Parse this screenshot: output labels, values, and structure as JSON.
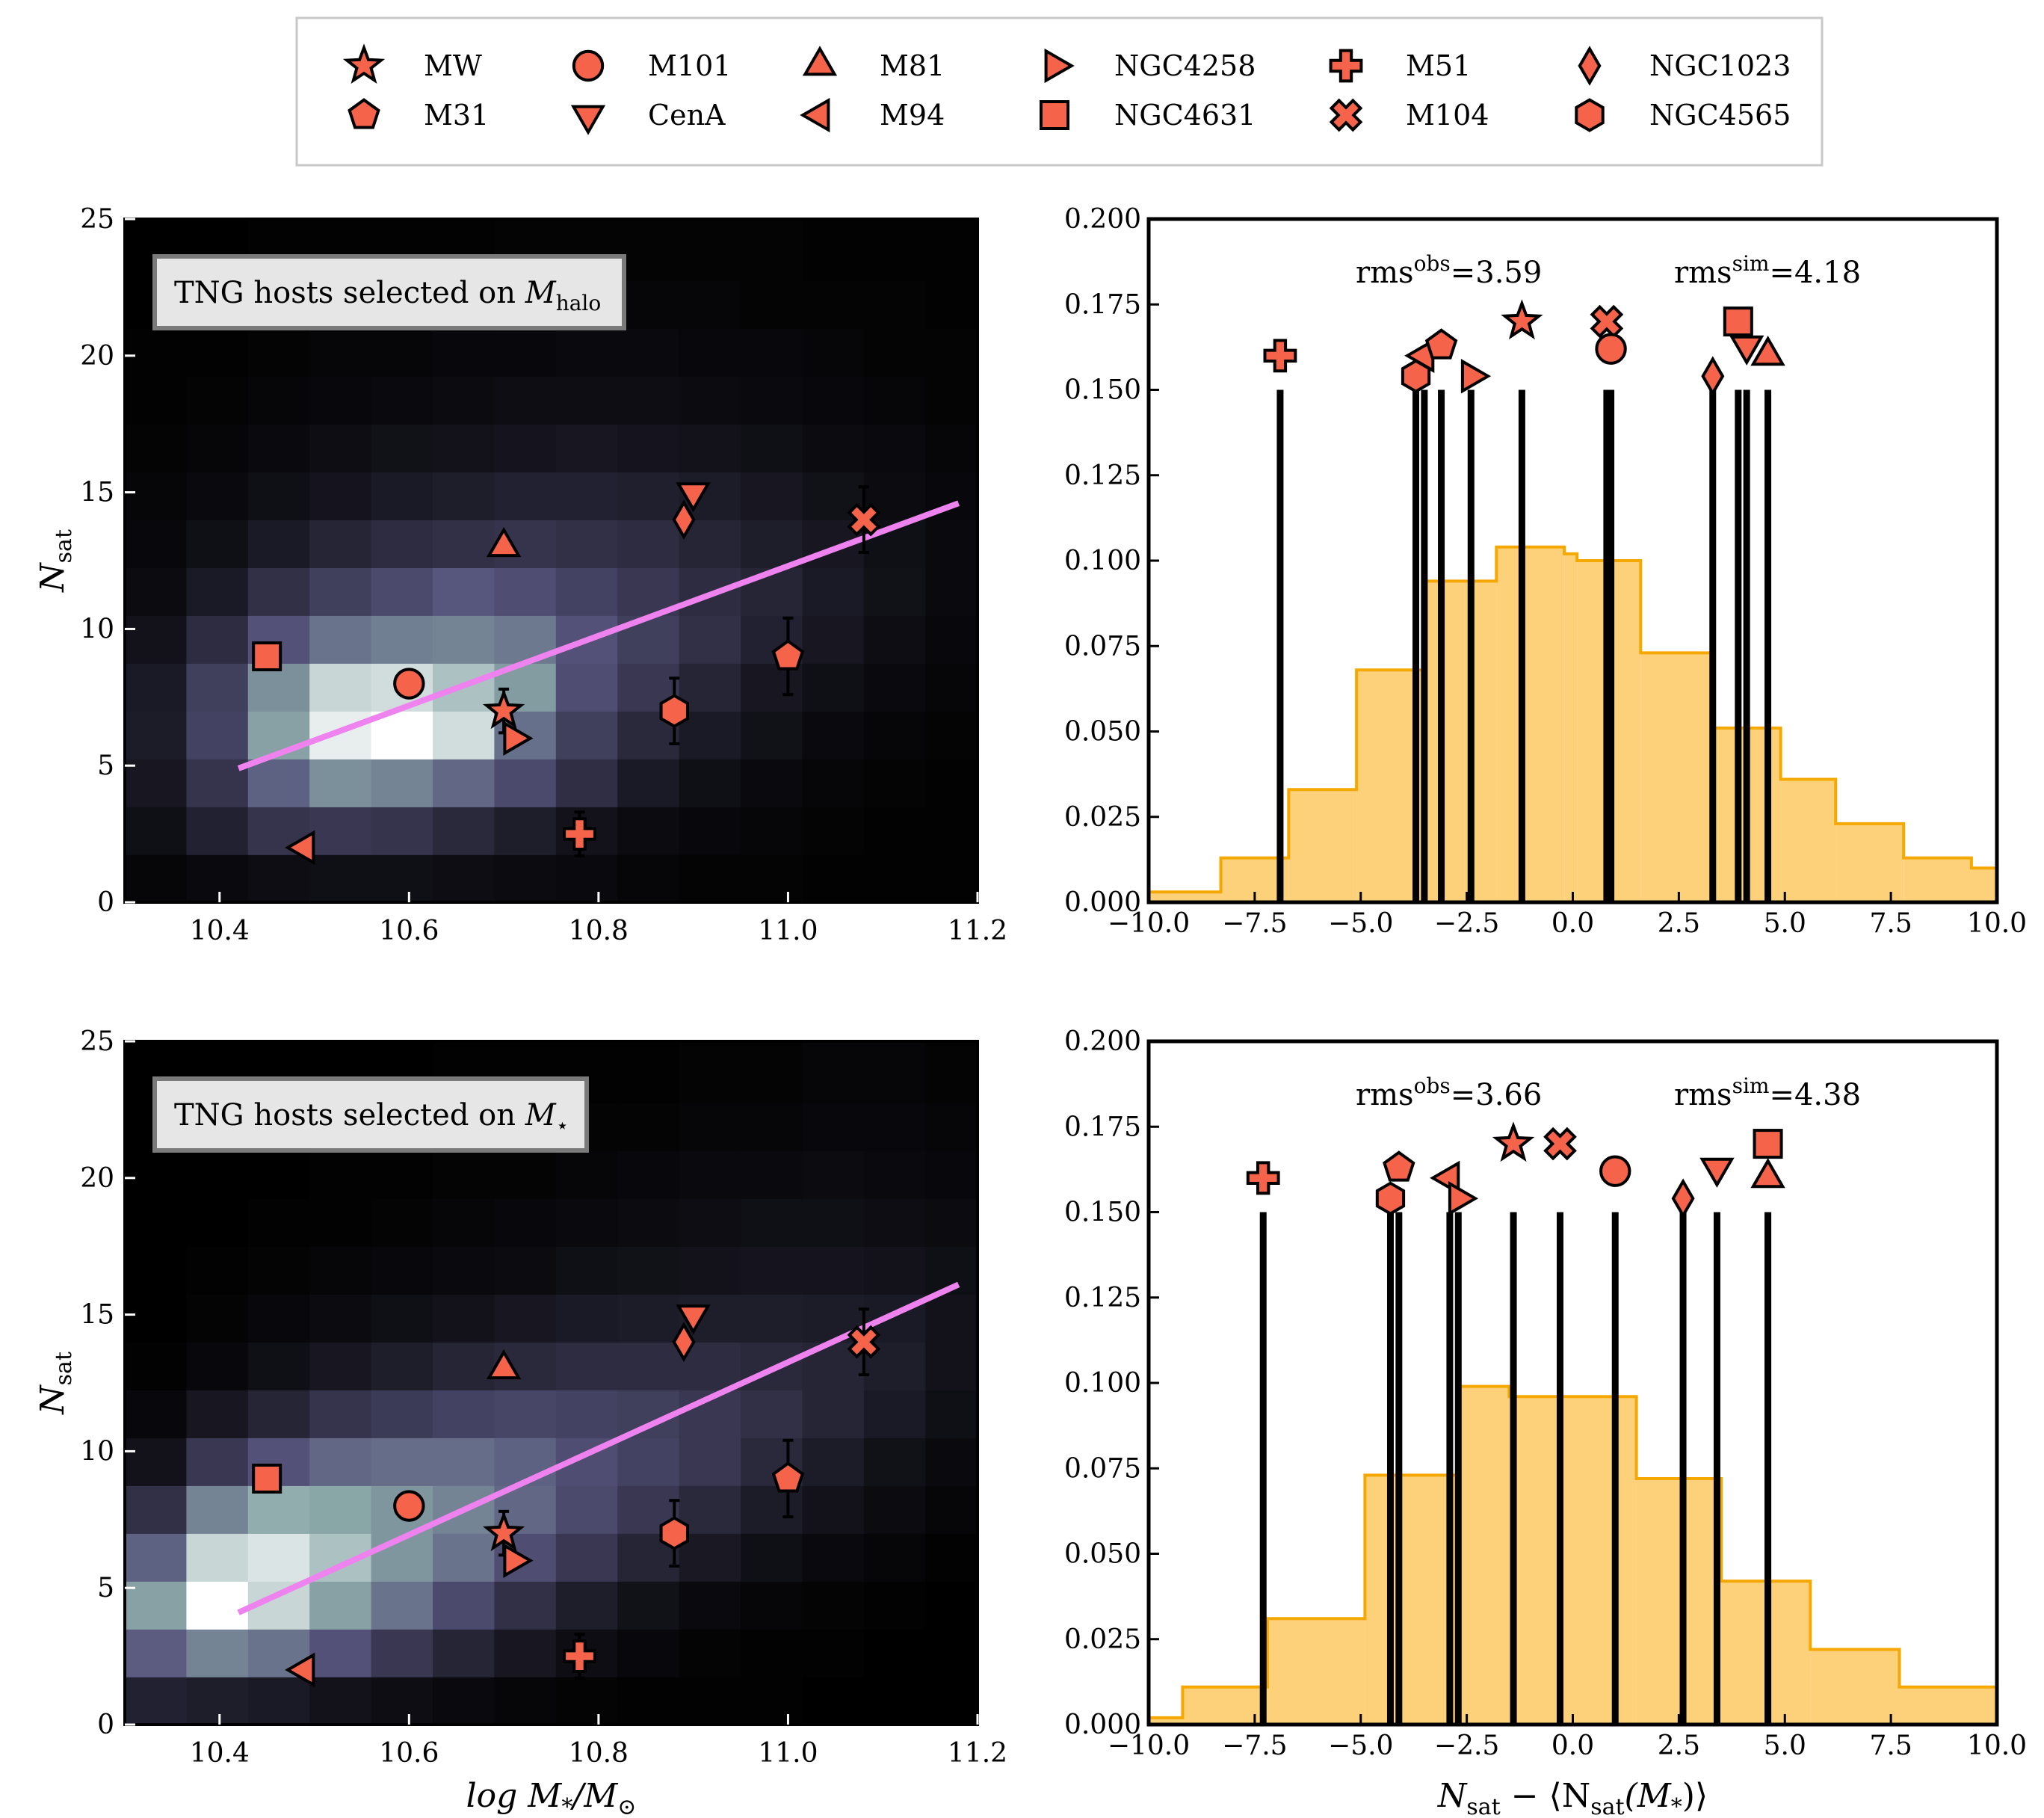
{
  "colors": {
    "marker_fill": "#f4634a",
    "marker_edge": "#000000",
    "fit_line": "#ee82ee",
    "hist_fill": "#fdd07a",
    "hist_edge": "#f5a800",
    "heat_low": "#000000",
    "heat_mid": "#55537a",
    "heat_high": "#ffffff"
  },
  "legend": {
    "entries": [
      {
        "name": "MW",
        "marker": "star-icon"
      },
      {
        "name": "M31",
        "marker": "pentagon-icon"
      },
      {
        "name": "M101",
        "marker": "circle-icon"
      },
      {
        "name": "CenA",
        "marker": "triangle-down-icon"
      },
      {
        "name": "M81",
        "marker": "triangle-up-icon"
      },
      {
        "name": "M94",
        "marker": "triangle-left-icon"
      },
      {
        "name": "NGC4258",
        "marker": "triangle-right-icon"
      },
      {
        "name": "NGC4631",
        "marker": "square-icon"
      },
      {
        "name": "M51",
        "marker": "plus-icon"
      },
      {
        "name": "M104",
        "marker": "x-icon"
      },
      {
        "name": "NGC1023",
        "marker": "diamond-icon"
      },
      {
        "name": "NGC4565",
        "marker": "hexagon-icon"
      }
    ]
  },
  "chart_data": [
    {
      "type": "heatmap",
      "panel": "top-left",
      "box_label_prefix": "TNG hosts selected on ",
      "box_label_math": "M",
      "box_label_sub": "halo",
      "xlabel": "",
      "ylabel": "N",
      "ylabel_sub": "sat",
      "xlim": [
        10.3,
        11.2
      ],
      "ylim": [
        0,
        25
      ],
      "xticks": [
        "10.4",
        "10.6",
        "10.8",
        "11.0",
        "11.2"
      ],
      "yticks": [
        "0",
        "5",
        "10",
        "15",
        "20",
        "25"
      ],
      "fit_line": {
        "x": [
          10.42,
          11.18
        ],
        "y": [
          4.9,
          14.6
        ]
      },
      "heat_row_edges": [
        0,
        1.75,
        3.5,
        5.25,
        7.0,
        8.75,
        10.5,
        12.25,
        14.0,
        15.75,
        17.5,
        19.25,
        21.0,
        22.75,
        25.0
      ],
      "heat_col_edges": [
        10.3,
        10.365,
        10.43,
        10.495,
        10.56,
        10.625,
        10.69,
        10.755,
        10.82,
        10.885,
        10.95,
        11.015,
        11.08,
        11.145,
        11.2
      ],
      "heat_values": [
        [
          0.03,
          0.05,
          0.07,
          0.08,
          0.08,
          0.07,
          0.06,
          0.05,
          0.03,
          0.02,
          0.02,
          0.01,
          0.01,
          0.01
        ],
        [
          0.08,
          0.18,
          0.28,
          0.3,
          0.28,
          0.22,
          0.16,
          0.1,
          0.06,
          0.04,
          0.03,
          0.02,
          0.01,
          0.01
        ],
        [
          0.12,
          0.28,
          0.5,
          0.66,
          0.62,
          0.52,
          0.4,
          0.25,
          0.14,
          0.08,
          0.05,
          0.03,
          0.02,
          0.01
        ],
        [
          0.15,
          0.36,
          0.72,
          0.95,
          1.0,
          0.9,
          0.55,
          0.34,
          0.22,
          0.14,
          0.09,
          0.05,
          0.03,
          0.02
        ],
        [
          0.14,
          0.34,
          0.66,
          0.88,
          0.9,
          0.82,
          0.7,
          0.42,
          0.3,
          0.2,
          0.12,
          0.08,
          0.05,
          0.03
        ],
        [
          0.1,
          0.24,
          0.44,
          0.56,
          0.6,
          0.62,
          0.58,
          0.44,
          0.34,
          0.26,
          0.18,
          0.12,
          0.07,
          0.04
        ],
        [
          0.06,
          0.14,
          0.26,
          0.34,
          0.4,
          0.46,
          0.42,
          0.36,
          0.3,
          0.24,
          0.2,
          0.14,
          0.09,
          0.05
        ],
        [
          0.04,
          0.08,
          0.14,
          0.2,
          0.24,
          0.26,
          0.28,
          0.26,
          0.24,
          0.2,
          0.16,
          0.12,
          0.08,
          0.05
        ],
        [
          0.03,
          0.05,
          0.08,
          0.11,
          0.14,
          0.16,
          0.18,
          0.18,
          0.17,
          0.15,
          0.12,
          0.09,
          0.06,
          0.04
        ],
        [
          0.02,
          0.03,
          0.05,
          0.07,
          0.09,
          0.1,
          0.11,
          0.12,
          0.11,
          0.1,
          0.08,
          0.06,
          0.05,
          0.03
        ],
        [
          0.01,
          0.02,
          0.03,
          0.04,
          0.05,
          0.06,
          0.07,
          0.07,
          0.07,
          0.06,
          0.05,
          0.04,
          0.03,
          0.02
        ],
        [
          0.01,
          0.01,
          0.02,
          0.03,
          0.03,
          0.04,
          0.04,
          0.05,
          0.05,
          0.04,
          0.04,
          0.03,
          0.02,
          0.02
        ],
        [
          0.0,
          0.01,
          0.01,
          0.02,
          0.02,
          0.02,
          0.03,
          0.03,
          0.03,
          0.03,
          0.02,
          0.02,
          0.02,
          0.01
        ],
        [
          0.0,
          0.0,
          0.01,
          0.01,
          0.01,
          0.01,
          0.02,
          0.02,
          0.02,
          0.02,
          0.02,
          0.01,
          0.01,
          0.01
        ]
      ],
      "points": [
        {
          "name": "MW",
          "x": 10.7,
          "y": 7.0,
          "err": 0.8
        },
        {
          "name": "M31",
          "x": 11.0,
          "y": 9.0,
          "err": 1.4
        },
        {
          "name": "M101",
          "x": 10.6,
          "y": 8.0,
          "err": 0
        },
        {
          "name": "CenA",
          "x": 10.9,
          "y": 15.0,
          "err": 0
        },
        {
          "name": "M81",
          "x": 10.7,
          "y": 13.0,
          "err": 0
        },
        {
          "name": "M94",
          "x": 10.49,
          "y": 2.0,
          "err": 0
        },
        {
          "name": "NGC4258",
          "x": 10.71,
          "y": 6.0,
          "err": 0
        },
        {
          "name": "NGC4631",
          "x": 10.45,
          "y": 9.0,
          "err": 0
        },
        {
          "name": "M51",
          "x": 10.78,
          "y": 2.5,
          "err": 0.8
        },
        {
          "name": "M104",
          "x": 11.08,
          "y": 14.0,
          "err": 1.2
        },
        {
          "name": "NGC1023",
          "x": 10.89,
          "y": 14.0,
          "err": 0
        },
        {
          "name": "NGC4565",
          "x": 10.88,
          "y": 7.0,
          "err": 1.2
        }
      ]
    },
    {
      "type": "bar",
      "panel": "top-right",
      "xlim": [
        -10,
        10
      ],
      "ylim": [
        0,
        0.2
      ],
      "xticks": [
        "−10.0",
        "−7.5",
        "−5.0",
        "−2.5",
        "0.0",
        "2.5",
        "5.0",
        "7.5",
        "10.0"
      ],
      "yticks": [
        "0.000",
        "0.025",
        "0.050",
        "0.075",
        "0.100",
        "0.125",
        "0.150",
        "0.175",
        "0.200"
      ],
      "xlabel": "",
      "rms_obs_label": "rms",
      "rms_obs_sup": "obs",
      "rms_obs_value": "=3.59",
      "rms_sim_label": "rms",
      "rms_sim_sup": "sim",
      "rms_sim_value": "=4.18",
      "hist_edges": [
        -10,
        -8.3,
        -6.7,
        -5.1,
        -3.5,
        -1.8,
        -0.2,
        0.1,
        1.6,
        3.3,
        4.9,
        6.2,
        7.8,
        9.4,
        10
      ],
      "hist_values": [
        0.003,
        0.013,
        0.033,
        0.068,
        0.094,
        0.104,
        0.102,
        0.1,
        0.073,
        0.051,
        0.036,
        0.023,
        0.013,
        0.01
      ],
      "points": [
        {
          "name": "M51",
          "dx": -6.9,
          "y": 0.16
        },
        {
          "name": "NGC4565",
          "dx": -3.7,
          "y": 0.154
        },
        {
          "name": "M94",
          "dx": -3.5,
          "y": 0.16
        },
        {
          "name": "M31",
          "dx": -3.1,
          "y": 0.163
        },
        {
          "name": "NGC4258",
          "dx": -2.4,
          "y": 0.154
        },
        {
          "name": "MW",
          "dx": -1.2,
          "y": 0.17
        },
        {
          "name": "M104",
          "dx": 0.8,
          "y": 0.17
        },
        {
          "name": "M101",
          "dx": 0.9,
          "y": 0.162
        },
        {
          "name": "NGC1023",
          "dx": 3.3,
          "y": 0.154
        },
        {
          "name": "NGC4631",
          "dx": 3.9,
          "y": 0.17
        },
        {
          "name": "CenA",
          "dx": 4.1,
          "y": 0.163
        },
        {
          "name": "M81",
          "dx": 4.6,
          "y": 0.16
        }
      ]
    },
    {
      "type": "heatmap",
      "panel": "bottom-left",
      "box_label_prefix": "TNG hosts selected on ",
      "box_label_math": "M",
      "box_label_sub": "⋆",
      "xlabel": "log M",
      "xlabel_sub": "*",
      "xlabel_tail": "/M",
      "xlabel_tail_sub": "⊙",
      "ylabel": "N",
      "ylabel_sub": "sat",
      "xlim": [
        10.3,
        11.2
      ],
      "ylim": [
        0,
        25
      ],
      "xticks": [
        "10.4",
        "10.6",
        "10.8",
        "11.0",
        "11.2"
      ],
      "yticks": [
        "0",
        "5",
        "10",
        "15",
        "20",
        "25"
      ],
      "fit_line": {
        "x": [
          10.42,
          11.18
        ],
        "y": [
          4.1,
          16.1
        ]
      },
      "heat_row_edges": [
        0,
        1.75,
        3.5,
        5.25,
        7.0,
        8.75,
        10.5,
        12.25,
        14.0,
        15.75,
        17.5,
        19.25,
        21.0,
        22.75,
        25.0
      ],
      "heat_col_edges": [
        10.3,
        10.365,
        10.43,
        10.495,
        10.56,
        10.625,
        10.69,
        10.755,
        10.82,
        10.885,
        10.95,
        11.015,
        11.08,
        11.145,
        11.2
      ],
      "heat_values": [
        [
          0.18,
          0.16,
          0.14,
          0.1,
          0.07,
          0.05,
          0.03,
          0.02,
          0.01,
          0.01,
          0.01,
          0.0,
          0.0,
          0.0
        ],
        [
          0.48,
          0.62,
          0.56,
          0.44,
          0.3,
          0.2,
          0.12,
          0.07,
          0.04,
          0.02,
          0.01,
          0.01,
          0.0,
          0.0
        ],
        [
          0.72,
          1.0,
          0.88,
          0.72,
          0.56,
          0.4,
          0.26,
          0.16,
          0.09,
          0.05,
          0.03,
          0.02,
          0.01,
          0.0
        ],
        [
          0.5,
          0.88,
          0.92,
          0.82,
          0.68,
          0.56,
          0.42,
          0.3,
          0.2,
          0.13,
          0.08,
          0.05,
          0.03,
          0.01
        ],
        [
          0.26,
          0.62,
          0.76,
          0.74,
          0.68,
          0.62,
          0.52,
          0.4,
          0.3,
          0.22,
          0.15,
          0.1,
          0.06,
          0.03
        ],
        [
          0.1,
          0.3,
          0.44,
          0.52,
          0.54,
          0.54,
          0.5,
          0.42,
          0.36,
          0.3,
          0.22,
          0.15,
          0.09,
          0.05
        ],
        [
          0.04,
          0.12,
          0.2,
          0.28,
          0.32,
          0.36,
          0.38,
          0.36,
          0.34,
          0.3,
          0.26,
          0.2,
          0.14,
          0.08
        ],
        [
          0.01,
          0.04,
          0.08,
          0.12,
          0.16,
          0.2,
          0.22,
          0.24,
          0.24,
          0.24,
          0.22,
          0.2,
          0.16,
          0.1
        ],
        [
          0.0,
          0.02,
          0.04,
          0.06,
          0.08,
          0.1,
          0.12,
          0.14,
          0.15,
          0.16,
          0.16,
          0.15,
          0.14,
          0.1
        ],
        [
          0.0,
          0.01,
          0.02,
          0.03,
          0.04,
          0.05,
          0.06,
          0.08,
          0.09,
          0.1,
          0.11,
          0.11,
          0.1,
          0.08
        ],
        [
          0.0,
          0.0,
          0.01,
          0.01,
          0.02,
          0.03,
          0.04,
          0.05,
          0.06,
          0.07,
          0.08,
          0.08,
          0.07,
          0.06
        ],
        [
          0.0,
          0.0,
          0.0,
          0.01,
          0.01,
          0.02,
          0.02,
          0.03,
          0.04,
          0.05,
          0.05,
          0.06,
          0.05,
          0.04
        ],
        [
          0.0,
          0.0,
          0.0,
          0.0,
          0.01,
          0.01,
          0.01,
          0.02,
          0.02,
          0.03,
          0.03,
          0.04,
          0.04,
          0.03
        ],
        [
          0.0,
          0.0,
          0.0,
          0.0,
          0.0,
          0.01,
          0.01,
          0.01,
          0.01,
          0.02,
          0.02,
          0.03,
          0.03,
          0.02
        ]
      ],
      "points": [
        {
          "name": "MW",
          "x": 10.7,
          "y": 7.0,
          "err": 0.8
        },
        {
          "name": "M31",
          "x": 11.0,
          "y": 9.0,
          "err": 1.4
        },
        {
          "name": "M101",
          "x": 10.6,
          "y": 8.0,
          "err": 0
        },
        {
          "name": "CenA",
          "x": 10.9,
          "y": 15.0,
          "err": 0
        },
        {
          "name": "M81",
          "x": 10.7,
          "y": 13.0,
          "err": 0
        },
        {
          "name": "M94",
          "x": 10.49,
          "y": 2.0,
          "err": 0
        },
        {
          "name": "NGC4258",
          "x": 10.71,
          "y": 6.0,
          "err": 0
        },
        {
          "name": "NGC4631",
          "x": 10.45,
          "y": 9.0,
          "err": 0
        },
        {
          "name": "M51",
          "x": 10.78,
          "y": 2.5,
          "err": 0.8
        },
        {
          "name": "M104",
          "x": 11.08,
          "y": 14.0,
          "err": 1.2
        },
        {
          "name": "NGC1023",
          "x": 10.89,
          "y": 14.0,
          "err": 0
        },
        {
          "name": "NGC4565",
          "x": 10.88,
          "y": 7.0,
          "err": 1.2
        }
      ]
    },
    {
      "type": "bar",
      "panel": "bottom-right",
      "xlim": [
        -10,
        10
      ],
      "ylim": [
        0,
        0.2
      ],
      "xticks": [
        "−10.0",
        "−7.5",
        "−5.0",
        "−2.5",
        "0.0",
        "2.5",
        "5.0",
        "7.5",
        "10.0"
      ],
      "yticks": [
        "0.000",
        "0.025",
        "0.050",
        "0.075",
        "0.100",
        "0.125",
        "0.150",
        "0.175",
        "0.200"
      ],
      "xlabel": "N",
      "xlabel_sub": "sat",
      "xlabel_mid": " − ⟨N",
      "xlabel_mid_sub": "sat",
      "xlabel_tail": "(M",
      "xlabel_tail_sub": "*",
      "xlabel_end": ")⟩",
      "rms_obs_label": "rms",
      "rms_obs_sup": "obs",
      "rms_obs_value": "=3.66",
      "rms_sim_label": "rms",
      "rms_sim_sup": "sim",
      "rms_sim_value": "=4.38",
      "hist_edges": [
        -10,
        -9.2,
        -7.2,
        -4.9,
        -2.7,
        -1.5,
        1.5,
        3.5,
        5.6,
        7.7,
        10
      ],
      "hist_values": [
        0.002,
        0.011,
        0.031,
        0.073,
        0.099,
        0.096,
        0.072,
        0.042,
        0.022,
        0.011
      ],
      "points": [
        {
          "name": "M51",
          "dx": -7.3,
          "y": 0.16
        },
        {
          "name": "NGC4565",
          "dx": -4.3,
          "y": 0.154
        },
        {
          "name": "M31",
          "dx": -4.1,
          "y": 0.163
        },
        {
          "name": "M94",
          "dx": -2.9,
          "y": 0.16
        },
        {
          "name": "NGC4258",
          "dx": -2.7,
          "y": 0.154
        },
        {
          "name": "MW",
          "dx": -1.4,
          "y": 0.17
        },
        {
          "name": "M104",
          "dx": -0.3,
          "y": 0.17
        },
        {
          "name": "M101",
          "dx": 1.0,
          "y": 0.162
        },
        {
          "name": "NGC1023",
          "dx": 2.6,
          "y": 0.154
        },
        {
          "name": "CenA",
          "dx": 3.4,
          "y": 0.163
        },
        {
          "name": "NGC4631",
          "dx": 4.6,
          "y": 0.17
        },
        {
          "name": "M81",
          "dx": 4.6,
          "y": 0.16
        }
      ]
    }
  ]
}
